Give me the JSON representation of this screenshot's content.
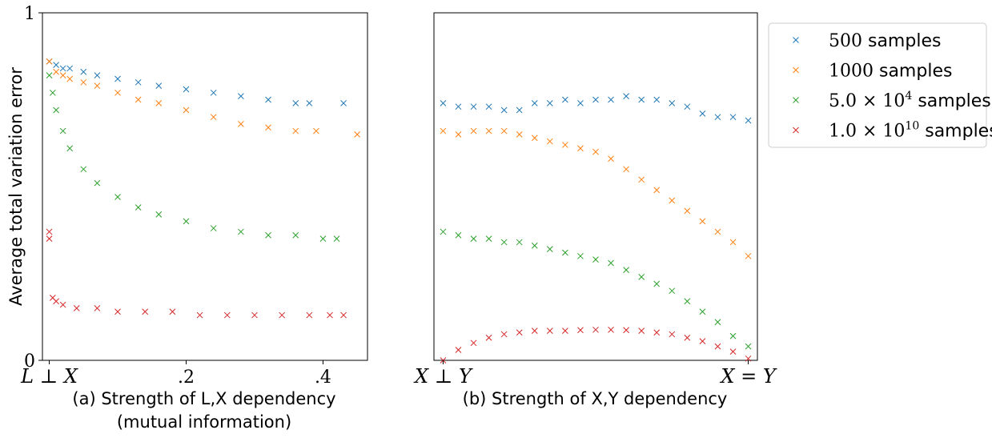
{
  "chart_data": [
    {
      "type": "scatter",
      "panel": "a",
      "ylabel": "Average total variation error",
      "xlabel_line1": "(a) Strength of L,X dependency",
      "xlabel_line2": "(mutual information)",
      "xlim": [
        -0.01,
        0.465
      ],
      "ylim": [
        0,
        1
      ],
      "x_ticks": [
        {
          "value": 0,
          "label": "L ⊥ X"
        },
        {
          "value": 0.2,
          "label": ".2"
        },
        {
          "value": 0.4,
          "label": ".4"
        }
      ],
      "y_ticks": [
        {
          "value": 0,
          "label": "0"
        },
        {
          "value": 1,
          "label": "1"
        }
      ],
      "marker": "x",
      "series": [
        {
          "name": "500 samples",
          "color": "#1f77b4",
          "x": [
            0.0,
            0.01,
            0.02,
            0.03,
            0.05,
            0.07,
            0.1,
            0.13,
            0.16,
            0.2,
            0.24,
            0.28,
            0.32,
            0.36,
            0.38,
            0.43
          ],
          "y": [
            0.86,
            0.85,
            0.84,
            0.84,
            0.83,
            0.82,
            0.81,
            0.8,
            0.79,
            0.78,
            0.77,
            0.76,
            0.75,
            0.74,
            0.74,
            0.74
          ]
        },
        {
          "name": "1000 samples",
          "color": "#ff7f0e",
          "x": [
            0.0,
            0.01,
            0.02,
            0.03,
            0.05,
            0.07,
            0.1,
            0.13,
            0.16,
            0.2,
            0.24,
            0.28,
            0.32,
            0.36,
            0.39,
            0.45
          ],
          "y": [
            0.86,
            0.83,
            0.82,
            0.81,
            0.8,
            0.79,
            0.77,
            0.75,
            0.74,
            0.72,
            0.7,
            0.68,
            0.67,
            0.66,
            0.66,
            0.65
          ]
        },
        {
          "name": "5.0 × 10^4 samples",
          "color": "#2ca02c",
          "x": [
            0.0,
            0.005,
            0.01,
            0.02,
            0.03,
            0.05,
            0.07,
            0.1,
            0.13,
            0.16,
            0.2,
            0.24,
            0.28,
            0.32,
            0.36,
            0.4,
            0.42
          ],
          "y": [
            0.82,
            0.77,
            0.72,
            0.66,
            0.61,
            0.55,
            0.51,
            0.47,
            0.44,
            0.42,
            0.4,
            0.38,
            0.37,
            0.36,
            0.36,
            0.35,
            0.35
          ]
        },
        {
          "name": "1.0 × 10^10 samples",
          "color": "#d62728",
          "x": [
            0.0,
            0.0,
            0.005,
            0.01,
            0.02,
            0.04,
            0.07,
            0.1,
            0.14,
            0.18,
            0.22,
            0.26,
            0.3,
            0.34,
            0.38,
            0.41,
            0.43
          ],
          "y": [
            0.37,
            0.35,
            0.18,
            0.17,
            0.16,
            0.15,
            0.15,
            0.14,
            0.14,
            0.14,
            0.13,
            0.13,
            0.13,
            0.13,
            0.13,
            0.13,
            0.13
          ]
        }
      ]
    },
    {
      "type": "scatter",
      "panel": "b",
      "xlabel": "(b) Strength of X,Y dependency",
      "xlim": [
        -0.03,
        1.03
      ],
      "ylim": [
        0,
        1
      ],
      "x_ticks": [
        {
          "value": 0,
          "label": "X ⊥ Y"
        },
        {
          "value": 1,
          "label": "X = Y"
        }
      ],
      "marker": "x",
      "series": [
        {
          "name": "500 samples",
          "color": "#1f77b4",
          "x": [
            0.0,
            0.05,
            0.1,
            0.15,
            0.2,
            0.25,
            0.3,
            0.35,
            0.4,
            0.45,
            0.5,
            0.55,
            0.6,
            0.65,
            0.7,
            0.75,
            0.8,
            0.85,
            0.9,
            0.95,
            1.0
          ],
          "y": [
            0.74,
            0.73,
            0.73,
            0.73,
            0.72,
            0.72,
            0.74,
            0.74,
            0.75,
            0.74,
            0.75,
            0.75,
            0.76,
            0.75,
            0.75,
            0.74,
            0.73,
            0.71,
            0.7,
            0.7,
            0.69
          ]
        },
        {
          "name": "1000 samples",
          "color": "#ff7f0e",
          "x": [
            0.0,
            0.05,
            0.1,
            0.15,
            0.2,
            0.25,
            0.3,
            0.35,
            0.4,
            0.45,
            0.5,
            0.55,
            0.6,
            0.65,
            0.7,
            0.75,
            0.8,
            0.85,
            0.9,
            0.95,
            1.0
          ],
          "y": [
            0.66,
            0.65,
            0.66,
            0.66,
            0.66,
            0.65,
            0.64,
            0.63,
            0.62,
            0.61,
            0.6,
            0.58,
            0.55,
            0.52,
            0.49,
            0.46,
            0.43,
            0.4,
            0.37,
            0.34,
            0.3
          ]
        },
        {
          "name": "5.0 × 10^4 samples",
          "color": "#2ca02c",
          "x": [
            0.0,
            0.05,
            0.1,
            0.15,
            0.2,
            0.25,
            0.3,
            0.35,
            0.4,
            0.45,
            0.5,
            0.55,
            0.6,
            0.65,
            0.7,
            0.75,
            0.8,
            0.85,
            0.9,
            0.95,
            1.0
          ],
          "y": [
            0.37,
            0.36,
            0.35,
            0.35,
            0.34,
            0.34,
            0.33,
            0.32,
            0.31,
            0.3,
            0.29,
            0.28,
            0.26,
            0.24,
            0.22,
            0.2,
            0.17,
            0.14,
            0.11,
            0.07,
            0.04
          ]
        },
        {
          "name": "1.0 × 10^10 samples",
          "color": "#d62728",
          "x": [
            0.0,
            0.05,
            0.1,
            0.15,
            0.2,
            0.25,
            0.3,
            0.35,
            0.4,
            0.45,
            0.5,
            0.55,
            0.6,
            0.65,
            0.7,
            0.75,
            0.8,
            0.85,
            0.9,
            0.95,
            1.0
          ],
          "y": [
            0.0,
            0.03,
            0.05,
            0.065,
            0.075,
            0.08,
            0.085,
            0.085,
            0.085,
            0.087,
            0.088,
            0.088,
            0.087,
            0.085,
            0.08,
            0.075,
            0.065,
            0.055,
            0.04,
            0.025,
            0.005
          ]
        }
      ]
    }
  ],
  "legend": {
    "placement": "outside-right",
    "entries": [
      {
        "num": "500",
        "exp": "",
        "suffix": "samples",
        "color": "#1f77b4"
      },
      {
        "num": "1000",
        "exp": "",
        "suffix": "samples",
        "color": "#ff7f0e"
      },
      {
        "num": "5.0 × 10",
        "exp": "4",
        "suffix": "samples",
        "color": "#2ca02c"
      },
      {
        "num": "1.0 × 10",
        "exp": "10",
        "suffix": "samples",
        "color": "#d62728"
      }
    ]
  }
}
